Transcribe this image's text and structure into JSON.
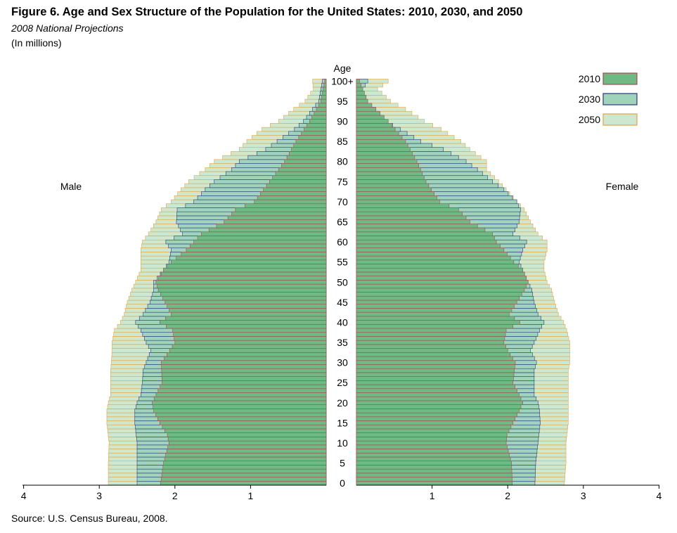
{
  "title": "Figure 6. Age and Sex Structure of the Population for the United States:  2010, 2030, and 2050",
  "subtitle": "2008 National Projections",
  "units": "(In millions)",
  "source": "Source: U.S. Census Bureau, 2008.",
  "colors": {
    "y2010_fill": "#6fb985",
    "y2010_stroke": "#a34a4a",
    "y2030_fill": "#9fd4bb",
    "y2030_stroke": "#2a3a7a",
    "y2050_fill": "#cde8cf",
    "y2050_stroke": "#e0a447"
  },
  "chart_data": {
    "type": "bar",
    "orientation": "horizontal-population-pyramid",
    "age_axis_label": "Age",
    "left_label": "Male",
    "right_label": "Female",
    "age_ticks": [
      "100+",
      "95",
      "90",
      "85",
      "80",
      "75",
      "70",
      "65",
      "60",
      "55",
      "50",
      "45",
      "40",
      "35",
      "30",
      "25",
      "20",
      "15",
      "10",
      "5",
      "0"
    ],
    "x_ticks_male": [
      "4",
      "3",
      "2",
      "1"
    ],
    "x_ticks_female": [
      "1",
      "2",
      "3",
      "4"
    ],
    "xlim": [
      0,
      4
    ],
    "legend_position": "top-right",
    "series": [
      {
        "name": "2010",
        "key": "y2010",
        "male_anchors": [
          [
            0,
            2.19
          ],
          [
            5,
            2.15
          ],
          [
            10,
            2.08
          ],
          [
            12,
            2.1
          ],
          [
            15,
            2.2
          ],
          [
            18,
            2.28
          ],
          [
            20,
            2.3
          ],
          [
            22,
            2.25
          ],
          [
            25,
            2.17
          ],
          [
            30,
            2.18
          ],
          [
            33,
            2.07
          ],
          [
            35,
            2.0
          ],
          [
            38,
            2.03
          ],
          [
            40,
            2.2
          ],
          [
            42,
            2.05
          ],
          [
            45,
            2.13
          ],
          [
            48,
            2.22
          ],
          [
            50,
            2.25
          ],
          [
            53,
            2.15
          ],
          [
            55,
            2.05
          ],
          [
            58,
            1.85
          ],
          [
            60,
            1.75
          ],
          [
            62,
            1.65
          ],
          [
            65,
            1.35
          ],
          [
            68,
            1.2
          ],
          [
            70,
            0.95
          ],
          [
            75,
            0.75
          ],
          [
            80,
            0.55
          ],
          [
            85,
            0.4
          ],
          [
            90,
            0.22
          ],
          [
            95,
            0.07
          ],
          [
            100,
            0.02
          ]
        ],
        "female_anchors": [
          [
            0,
            2.06
          ],
          [
            5,
            2.05
          ],
          [
            10,
            1.98
          ],
          [
            12,
            1.99
          ],
          [
            15,
            2.07
          ],
          [
            18,
            2.15
          ],
          [
            20,
            2.2
          ],
          [
            22,
            2.15
          ],
          [
            25,
            2.07
          ],
          [
            30,
            2.1
          ],
          [
            33,
            2.0
          ],
          [
            35,
            1.95
          ],
          [
            38,
            1.98
          ],
          [
            40,
            2.16
          ],
          [
            42,
            2.02
          ],
          [
            45,
            2.12
          ],
          [
            48,
            2.22
          ],
          [
            50,
            2.27
          ],
          [
            53,
            2.2
          ],
          [
            55,
            2.08
          ],
          [
            58,
            1.95
          ],
          [
            60,
            1.85
          ],
          [
            62,
            1.8
          ],
          [
            65,
            1.5
          ],
          [
            68,
            1.35
          ],
          [
            70,
            1.1
          ],
          [
            75,
            0.92
          ],
          [
            80,
            0.8
          ],
          [
            85,
            0.65
          ],
          [
            90,
            0.42
          ],
          [
            95,
            0.15
          ],
          [
            100,
            0.04
          ]
        ]
      },
      {
        "name": "2030",
        "key": "y2030",
        "male_anchors": [
          [
            0,
            2.5
          ],
          [
            5,
            2.5
          ],
          [
            10,
            2.5
          ],
          [
            15,
            2.53
          ],
          [
            18,
            2.53
          ],
          [
            20,
            2.5
          ],
          [
            22,
            2.45
          ],
          [
            25,
            2.43
          ],
          [
            28,
            2.42
          ],
          [
            30,
            2.38
          ],
          [
            33,
            2.32
          ],
          [
            35,
            2.38
          ],
          [
            38,
            2.45
          ],
          [
            40,
            2.52
          ],
          [
            42,
            2.42
          ],
          [
            45,
            2.33
          ],
          [
            48,
            2.28
          ],
          [
            50,
            2.28
          ],
          [
            53,
            2.15
          ],
          [
            55,
            2.08
          ],
          [
            58,
            2.05
          ],
          [
            60,
            2.12
          ],
          [
            62,
            1.9
          ],
          [
            65,
            1.98
          ],
          [
            68,
            1.97
          ],
          [
            70,
            1.75
          ],
          [
            73,
            1.6
          ],
          [
            75,
            1.48
          ],
          [
            78,
            1.25
          ],
          [
            80,
            1.15
          ],
          [
            83,
            0.8
          ],
          [
            85,
            0.65
          ],
          [
            88,
            0.42
          ],
          [
            90,
            0.3
          ],
          [
            93,
            0.18
          ],
          [
            95,
            0.1
          ],
          [
            98,
            0.07
          ],
          [
            100,
            0.05
          ]
        ],
        "female_anchors": [
          [
            0,
            2.36
          ],
          [
            5,
            2.37
          ],
          [
            10,
            2.4
          ],
          [
            15,
            2.43
          ],
          [
            18,
            2.42
          ],
          [
            20,
            2.4
          ],
          [
            22,
            2.35
          ],
          [
            25,
            2.35
          ],
          [
            28,
            2.35
          ],
          [
            30,
            2.38
          ],
          [
            33,
            2.3
          ],
          [
            35,
            2.35
          ],
          [
            38,
            2.42
          ],
          [
            40,
            2.48
          ],
          [
            42,
            2.4
          ],
          [
            45,
            2.35
          ],
          [
            48,
            2.32
          ],
          [
            50,
            2.27
          ],
          [
            53,
            2.2
          ],
          [
            55,
            2.15
          ],
          [
            58,
            2.2
          ],
          [
            60,
            2.25
          ],
          [
            62,
            2.07
          ],
          [
            65,
            2.15
          ],
          [
            68,
            2.17
          ],
          [
            70,
            2.12
          ],
          [
            73,
            1.95
          ],
          [
            75,
            1.8
          ],
          [
            78,
            1.6
          ],
          [
            80,
            1.45
          ],
          [
            83,
            1.15
          ],
          [
            85,
            0.85
          ],
          [
            88,
            0.58
          ],
          [
            90,
            0.38
          ],
          [
            93,
            0.25
          ],
          [
            95,
            0.13
          ],
          [
            98,
            0.08
          ],
          [
            100,
            0.15
          ]
        ]
      },
      {
        "name": "2050",
        "key": "y2050",
        "male_anchors": [
          [
            0,
            2.88
          ],
          [
            5,
            2.88
          ],
          [
            10,
            2.87
          ],
          [
            15,
            2.9
          ],
          [
            18,
            2.9
          ],
          [
            20,
            2.88
          ],
          [
            22,
            2.85
          ],
          [
            25,
            2.85
          ],
          [
            28,
            2.85
          ],
          [
            30,
            2.84
          ],
          [
            33,
            2.83
          ],
          [
            35,
            2.83
          ],
          [
            38,
            2.8
          ],
          [
            40,
            2.72
          ],
          [
            42,
            2.67
          ],
          [
            45,
            2.63
          ],
          [
            48,
            2.57
          ],
          [
            50,
            2.52
          ],
          [
            53,
            2.45
          ],
          [
            55,
            2.45
          ],
          [
            58,
            2.45
          ],
          [
            60,
            2.43
          ],
          [
            62,
            2.35
          ],
          [
            65,
            2.25
          ],
          [
            68,
            2.18
          ],
          [
            70,
            2.05
          ],
          [
            73,
            1.92
          ],
          [
            75,
            1.82
          ],
          [
            78,
            1.6
          ],
          [
            80,
            1.48
          ],
          [
            83,
            1.15
          ],
          [
            85,
            1.05
          ],
          [
            88,
            0.85
          ],
          [
            90,
            0.63
          ],
          [
            93,
            0.43
          ],
          [
            95,
            0.28
          ],
          [
            98,
            0.17
          ],
          [
            100,
            0.18
          ]
        ],
        "female_anchors": [
          [
            0,
            2.75
          ],
          [
            5,
            2.77
          ],
          [
            10,
            2.77
          ],
          [
            15,
            2.8
          ],
          [
            18,
            2.8
          ],
          [
            20,
            2.8
          ],
          [
            22,
            2.8
          ],
          [
            25,
            2.8
          ],
          [
            28,
            2.8
          ],
          [
            30,
            2.82
          ],
          [
            33,
            2.82
          ],
          [
            35,
            2.82
          ],
          [
            38,
            2.78
          ],
          [
            40,
            2.74
          ],
          [
            42,
            2.67
          ],
          [
            45,
            2.62
          ],
          [
            48,
            2.58
          ],
          [
            50,
            2.52
          ],
          [
            53,
            2.48
          ],
          [
            55,
            2.48
          ],
          [
            58,
            2.52
          ],
          [
            60,
            2.52
          ],
          [
            62,
            2.4
          ],
          [
            65,
            2.3
          ],
          [
            68,
            2.22
          ],
          [
            70,
            2.12
          ],
          [
            73,
            1.98
          ],
          [
            75,
            1.88
          ],
          [
            78,
            1.72
          ],
          [
            80,
            1.72
          ],
          [
            83,
            1.5
          ],
          [
            85,
            1.38
          ],
          [
            88,
            1.12
          ],
          [
            90,
            0.9
          ],
          [
            93,
            0.65
          ],
          [
            95,
            0.45
          ],
          [
            98,
            0.28
          ],
          [
            100,
            0.42
          ]
        ]
      }
    ]
  }
}
